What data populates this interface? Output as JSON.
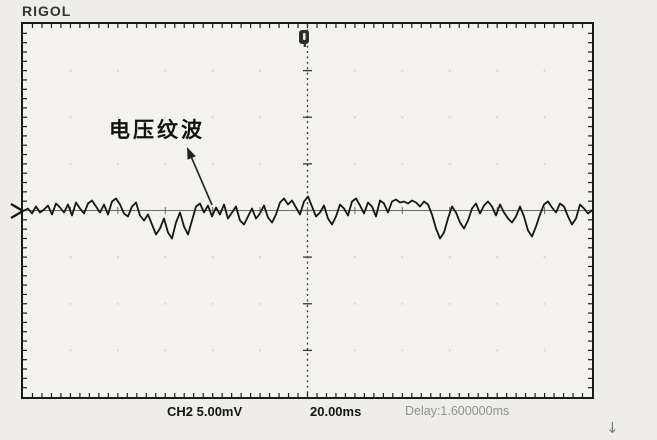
{
  "brand": "RIGOL",
  "annotation": {
    "label": "电压纹波"
  },
  "readout": {
    "channel": "CH2 5.00mV",
    "timebase": "20.00ms",
    "delay": "Delay:1.600000ms"
  },
  "cursor_hint": "↓",
  "colors": {
    "page_bg": "#eeedea",
    "screen_bg": "#f3f2ef",
    "border": "#1b1b1b",
    "trace": "#161616",
    "grid_dot": "#dbdad6",
    "center_dash": "#3a3a3a",
    "center_hline": "#6b6b6b",
    "delay_text": "#8f8f8f",
    "marker": "#2e2e2e",
    "arrow": "#222222"
  },
  "chart_data": {
    "type": "line",
    "title": "",
    "series": [
      {
        "name": "CH2",
        "volts_per_div": "5.00mV"
      }
    ],
    "time_per_div": "20.00ms",
    "delay": "1.600000ms",
    "legend": "none",
    "graticule": {
      "h_divisions": 12,
      "v_divisions": 8,
      "minor_ticks_per_div": 5,
      "grid_dots": true
    },
    "waveform": {
      "x_start": 1,
      "x_step": 4,
      "offsets": [
        0,
        -2,
        3,
        -4,
        2,
        -1,
        -5,
        4,
        -7,
        -3,
        2,
        -6,
        5,
        -8,
        -2,
        3,
        -7,
        -10,
        -4,
        2,
        -6,
        4,
        -9,
        -12,
        -6,
        3,
        6,
        -4,
        -8,
        5,
        10,
        4,
        14,
        24,
        18,
        8,
        22,
        28,
        12,
        2,
        16,
        24,
        10,
        -4,
        -7,
        2,
        -5,
        6,
        -3,
        4,
        -6,
        8,
        2,
        -4,
        10,
        14,
        6,
        -2,
        8,
        3,
        -5,
        7,
        12,
        4,
        -8,
        -12,
        -6,
        -10,
        -3,
        4,
        -9,
        -14,
        -4,
        6,
        2,
        -5,
        8,
        14,
        6,
        -6,
        -2,
        5,
        -9,
        -12,
        -5,
        3,
        -8,
        -4,
        6,
        -10,
        -7,
        2,
        -9,
        -11,
        -8,
        -9,
        -7,
        -10,
        -8,
        -4,
        -9,
        -6,
        4,
        18,
        28,
        22,
        8,
        -4,
        2,
        12,
        18,
        10,
        -2,
        -7,
        3,
        -5,
        -9,
        -4,
        5,
        -6,
        2,
        8,
        12,
        6,
        -4,
        6,
        20,
        26,
        16,
        4,
        -6,
        -9,
        -3,
        2,
        -7,
        -4,
        6,
        14,
        8,
        -6,
        -2,
        3,
        0
      ]
    },
    "annotation_arrow": {
      "tail": [
        189,
        181
      ],
      "head": [
        165,
        125
      ]
    }
  }
}
